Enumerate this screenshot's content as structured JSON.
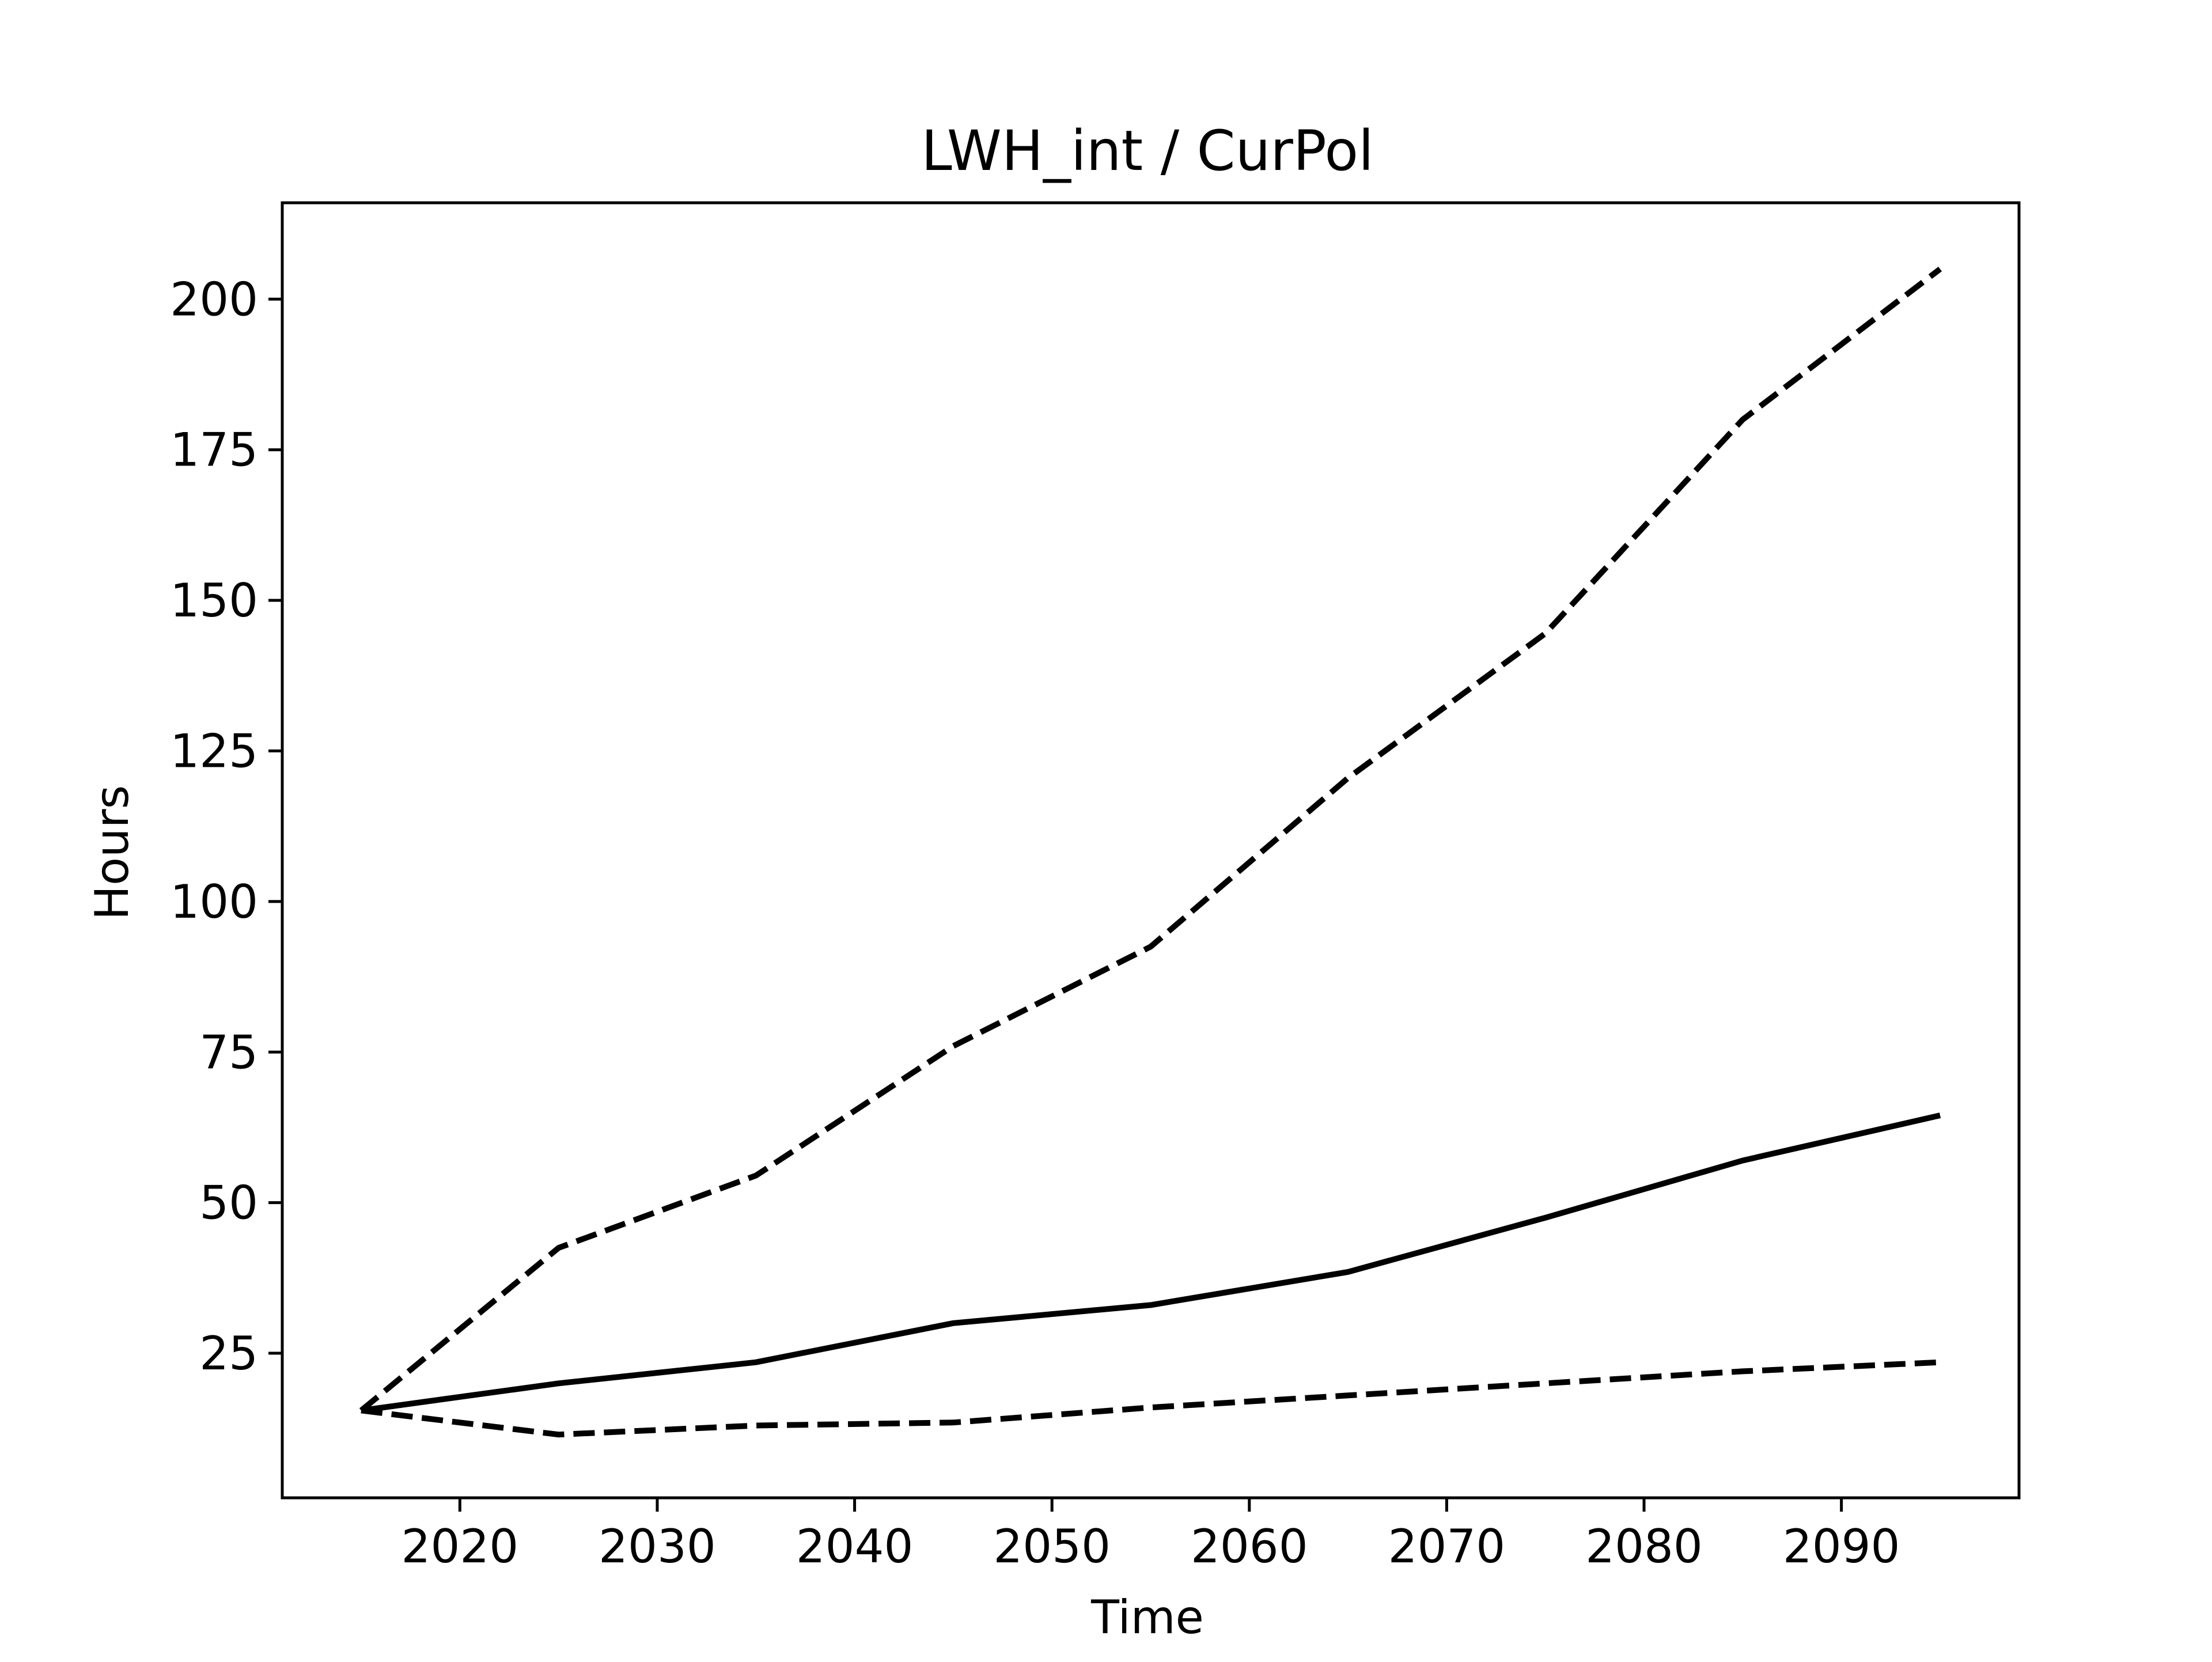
{
  "chart_data": {
    "type": "line",
    "title": "LWH_int / CurPol",
    "xlabel": "Time",
    "ylabel": "Hours",
    "xlim": [
      2011,
      2099
    ],
    "ylim": [
      1,
      216
    ],
    "xticks": [
      2020,
      2030,
      2040,
      2050,
      2060,
      2070,
      2080,
      2090
    ],
    "yticks": [
      25,
      50,
      75,
      100,
      125,
      150,
      175,
      200
    ],
    "grid": false,
    "legend": "none",
    "x": [
      2015,
      2025,
      2035,
      2045,
      2055,
      2065,
      2075,
      2085,
      2095
    ],
    "series": [
      {
        "values": [
          15.5,
          42.5,
          54.5,
          76,
          92.5,
          120.5,
          144.5,
          180,
          205
        ],
        "style": "dashed",
        "color": "#000000"
      },
      {
        "values": [
          15.5,
          20,
          23.5,
          30,
          33,
          38.5,
          47.5,
          57,
          64.5
        ],
        "style": "solid",
        "color": "#000000"
      },
      {
        "values": [
          15.5,
          11.5,
          13,
          13.5,
          16,
          18,
          20,
          22,
          23.5
        ],
        "style": "dashed",
        "color": "#000000"
      }
    ]
  }
}
